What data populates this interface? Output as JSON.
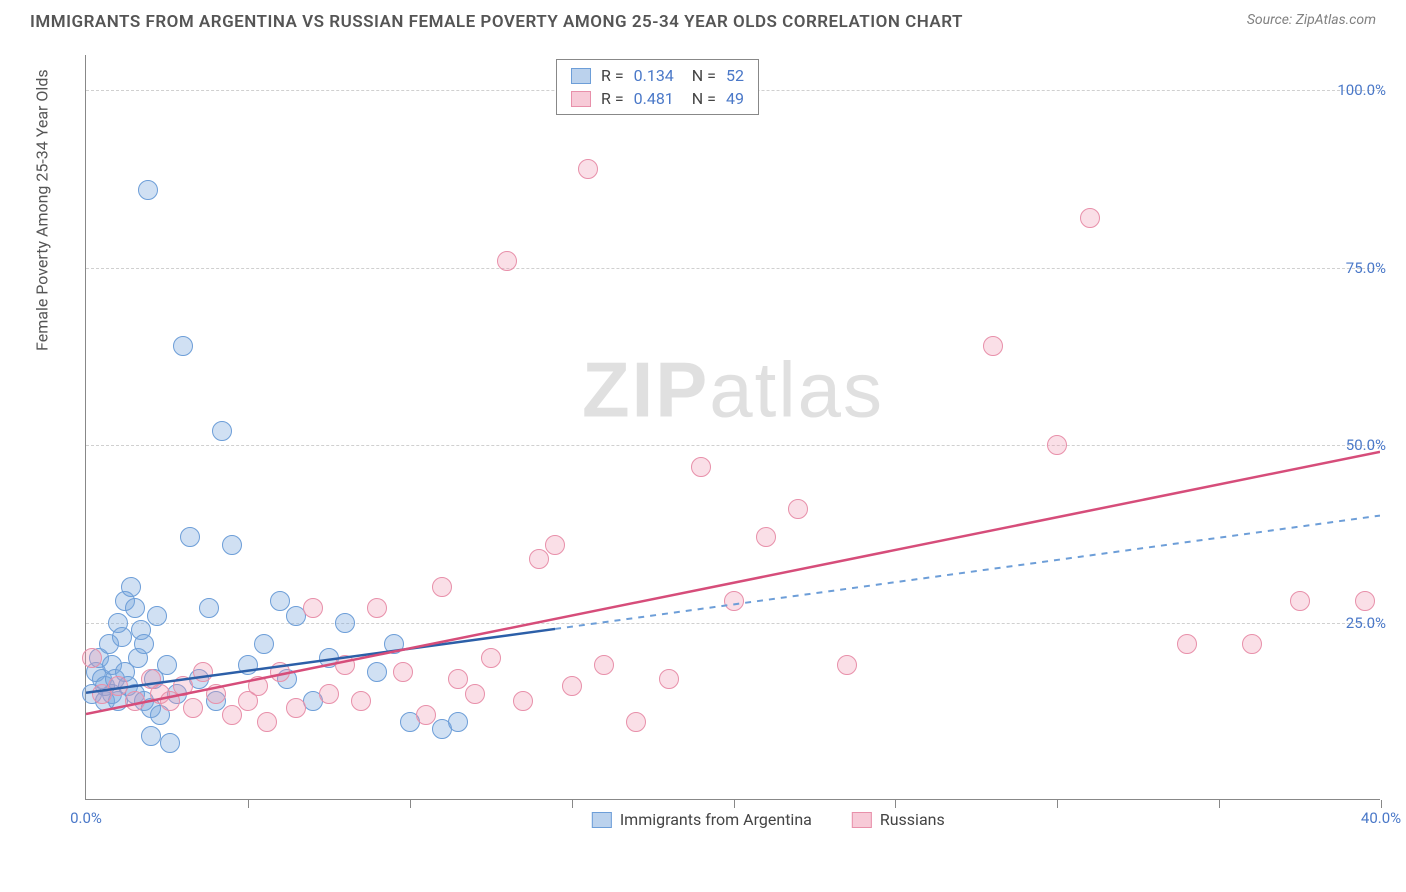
{
  "title": "IMMIGRANTS FROM ARGENTINA VS RUSSIAN FEMALE POVERTY AMONG 25-34 YEAR OLDS CORRELATION CHART",
  "source": "Source: ZipAtlas.com",
  "watermark_bold": "ZIP",
  "watermark_light": "atlas",
  "chart": {
    "type": "scatter",
    "xlim": [
      0,
      40
    ],
    "ylim": [
      0,
      105
    ],
    "x_ticks": [
      0,
      5,
      10,
      15,
      20,
      25,
      30,
      35,
      40
    ],
    "x_tick_labels": {
      "0": "0.0%",
      "40": "40.0%"
    },
    "y_ticks": [
      25,
      50,
      75,
      100
    ],
    "y_tick_labels": {
      "25": "25.0%",
      "50": "50.0%",
      "75": "75.0%",
      "100": "100.0%"
    },
    "y_axis_label": "Female Poverty Among 25-34 Year Olds",
    "grid_color": "#d0d0d0",
    "background_color": "#ffffff",
    "marker_radius": 10,
    "series": [
      {
        "name": "Immigrants from Argentina",
        "key": "argentina",
        "color_fill": "rgba(120,165,220,0.35)",
        "color_stroke": "#6d9ed8",
        "legend_swatch": "blue",
        "stats": {
          "R": "0.134",
          "N": "52"
        },
        "trend": {
          "x1": 0,
          "y1": 15,
          "x2": 14.5,
          "y2": 24,
          "solid": true,
          "ext_x1": 14.5,
          "ext_y1": 24,
          "ext_x2": 40,
          "ext_y2": 40,
          "ext_dash": "6,6"
        },
        "points": [
          [
            0.2,
            15
          ],
          [
            0.3,
            18
          ],
          [
            0.4,
            20
          ],
          [
            0.5,
            17
          ],
          [
            0.6,
            14
          ],
          [
            0.6,
            16
          ],
          [
            0.7,
            22
          ],
          [
            0.8,
            19
          ],
          [
            0.8,
            15
          ],
          [
            0.9,
            17
          ],
          [
            1.0,
            14
          ],
          [
            1.0,
            25
          ],
          [
            1.1,
            23
          ],
          [
            1.2,
            28
          ],
          [
            1.2,
            18
          ],
          [
            1.3,
            16
          ],
          [
            1.4,
            30
          ],
          [
            1.5,
            15
          ],
          [
            1.5,
            27
          ],
          [
            1.6,
            20
          ],
          [
            1.7,
            24
          ],
          [
            1.8,
            14
          ],
          [
            1.8,
            22
          ],
          [
            1.9,
            86
          ],
          [
            2.0,
            9
          ],
          [
            2.0,
            13
          ],
          [
            2.1,
            17
          ],
          [
            2.2,
            26
          ],
          [
            2.3,
            12
          ],
          [
            2.5,
            19
          ],
          [
            2.6,
            8
          ],
          [
            2.8,
            15
          ],
          [
            3.0,
            64
          ],
          [
            3.2,
            37
          ],
          [
            3.5,
            17
          ],
          [
            3.8,
            27
          ],
          [
            4.0,
            14
          ],
          [
            4.2,
            52
          ],
          [
            4.5,
            36
          ],
          [
            5.0,
            19
          ],
          [
            5.5,
            22
          ],
          [
            6.0,
            28
          ],
          [
            6.2,
            17
          ],
          [
            6.5,
            26
          ],
          [
            7.0,
            14
          ],
          [
            7.5,
            20
          ],
          [
            8.0,
            25
          ],
          [
            9.0,
            18
          ],
          [
            9.5,
            22
          ],
          [
            10.0,
            11
          ],
          [
            11.0,
            10
          ],
          [
            11.5,
            11
          ]
        ]
      },
      {
        "name": "Russians",
        "key": "russians",
        "color_fill": "rgba(240,150,175,0.30)",
        "color_stroke": "#e890aa",
        "legend_swatch": "pink",
        "stats": {
          "R": "0.481",
          "N": "49"
        },
        "trend": {
          "x1": 0,
          "y1": 12,
          "x2": 40,
          "y2": 49,
          "solid": true
        },
        "points": [
          [
            0.2,
            20
          ],
          [
            0.5,
            15
          ],
          [
            1.0,
            16
          ],
          [
            1.5,
            14
          ],
          [
            2.0,
            17
          ],
          [
            2.3,
            15
          ],
          [
            2.6,
            14
          ],
          [
            3.0,
            16
          ],
          [
            3.3,
            13
          ],
          [
            3.6,
            18
          ],
          [
            4.0,
            15
          ],
          [
            4.5,
            12
          ],
          [
            5.0,
            14
          ],
          [
            5.3,
            16
          ],
          [
            5.6,
            11
          ],
          [
            6.0,
            18
          ],
          [
            6.5,
            13
          ],
          [
            7.0,
            27
          ],
          [
            7.5,
            15
          ],
          [
            8.0,
            19
          ],
          [
            8.5,
            14
          ],
          [
            9.0,
            27
          ],
          [
            9.8,
            18
          ],
          [
            10.5,
            12
          ],
          [
            11.0,
            30
          ],
          [
            11.5,
            17
          ],
          [
            12.0,
            15
          ],
          [
            12.5,
            20
          ],
          [
            13.0,
            76
          ],
          [
            13.5,
            14
          ],
          [
            14.0,
            34
          ],
          [
            14.5,
            36
          ],
          [
            15.0,
            16
          ],
          [
            15.5,
            89
          ],
          [
            16.0,
            19
          ],
          [
            17.0,
            11
          ],
          [
            18.0,
            17
          ],
          [
            19.0,
            47
          ],
          [
            20.0,
            28
          ],
          [
            21.0,
            37
          ],
          [
            22.0,
            41
          ],
          [
            23.5,
            19
          ],
          [
            28.0,
            64
          ],
          [
            30.0,
            50
          ],
          [
            31.0,
            82
          ],
          [
            34.0,
            22
          ],
          [
            36.0,
            22
          ],
          [
            37.5,
            28
          ],
          [
            39.5,
            28
          ]
        ]
      }
    ]
  }
}
